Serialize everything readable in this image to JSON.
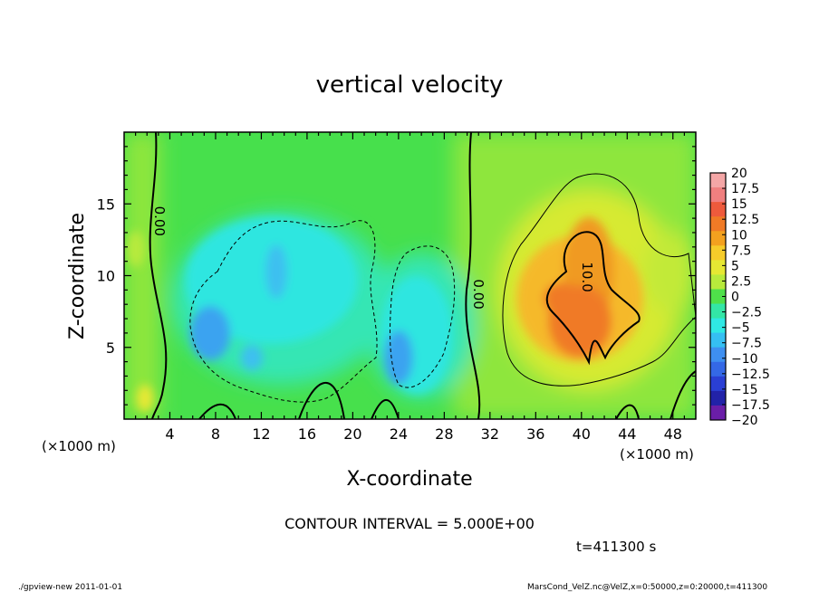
{
  "chart_data": {
    "type": "heatmap",
    "title": "vertical velocity",
    "xlabel": "X-coordinate",
    "ylabel": "Z-coordinate",
    "x_unit_label": "(×1000 m)",
    "y_unit_label": "(×1000 m)",
    "xlim": [
      0,
      50
    ],
    "ylim": [
      0,
      20
    ],
    "x_ticks": [
      4,
      8,
      12,
      16,
      20,
      24,
      28,
      32,
      36,
      40,
      44,
      48
    ],
    "y_ticks": [
      5,
      10,
      15
    ],
    "colorbar": {
      "labels": [
        "20",
        "17.5",
        "15",
        "12.5",
        "10",
        "7.5",
        "5",
        "2.5",
        "0",
        "−2.5",
        "−5",
        "−7.5",
        "−10",
        "−12.5",
        "−15",
        "−17.5",
        "−20"
      ],
      "colors": [
        "#f4a6a6",
        "#f07f7f",
        "#ee5a3c",
        "#f07a26",
        "#f3a11f",
        "#f6cc2a",
        "#e6e833",
        "#b8ea3c",
        "#4fe04a",
        "#33e6a6",
        "#2fe8e4",
        "#35bff2",
        "#3e8ff0",
        "#3468e6",
        "#2a3fd4",
        "#2222a8",
        "#6a1ea8"
      ]
    },
    "contour_labels": [
      {
        "text": "0.00",
        "x": 2.7,
        "z": 13.8
      },
      {
        "text": "0.00",
        "x": 30.6,
        "z": 8.7
      },
      {
        "text": "10.0",
        "x": 40.1,
        "z": 9.9
      }
    ],
    "contour_interval": "CONTOUR INTERVAL = 5.000E+00",
    "time": "t=411300 s"
  },
  "footer": {
    "left": "./gpview-new  2011-01-01",
    "right": "MarsCond_VelZ.nc@VelZ,x=0:50000,z=0:20000,t=411300"
  }
}
